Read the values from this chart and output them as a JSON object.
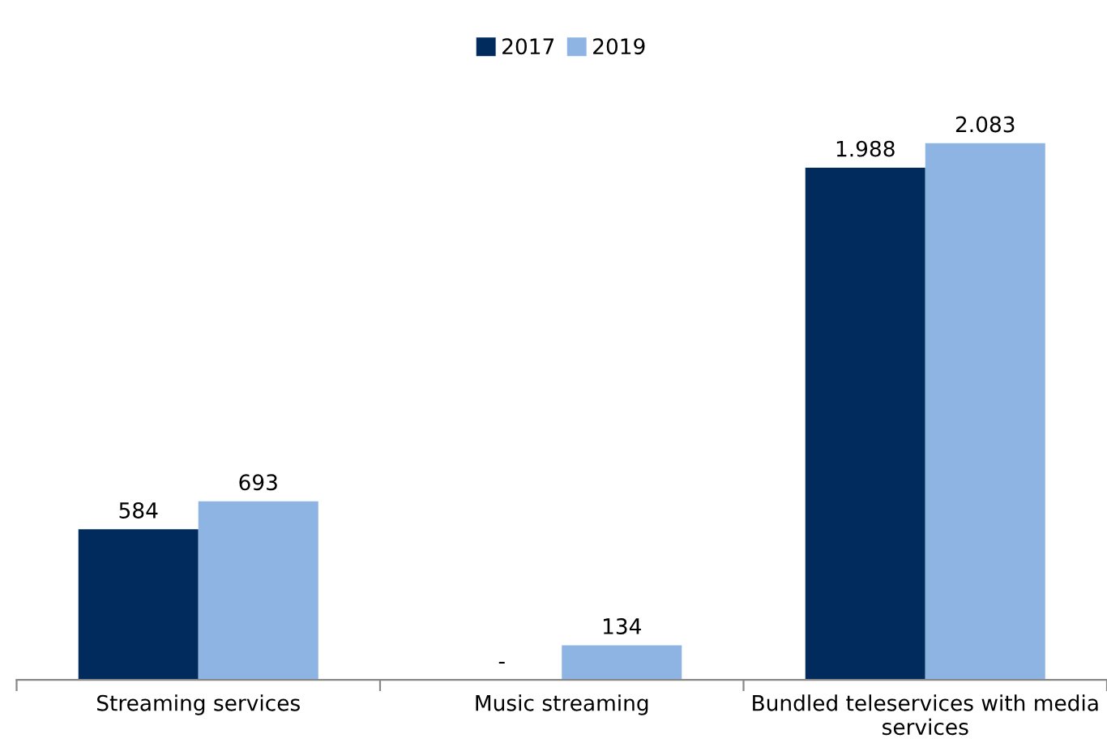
{
  "chart_data": {
    "type": "bar",
    "categories": [
      "Streaming services",
      "Music streaming",
      "Bundled teleservices with media services"
    ],
    "series": [
      {
        "name": "2017",
        "color": "#002b5c",
        "values": [
          584,
          null,
          1988
        ],
        "value_labels": [
          "584",
          "-",
          "1.988"
        ]
      },
      {
        "name": "2019",
        "color": "#8db4e2",
        "values": [
          693,
          134,
          2083
        ],
        "value_labels": [
          "693",
          "134",
          "2.083"
        ]
      }
    ],
    "legend": "top",
    "grid": false
  }
}
